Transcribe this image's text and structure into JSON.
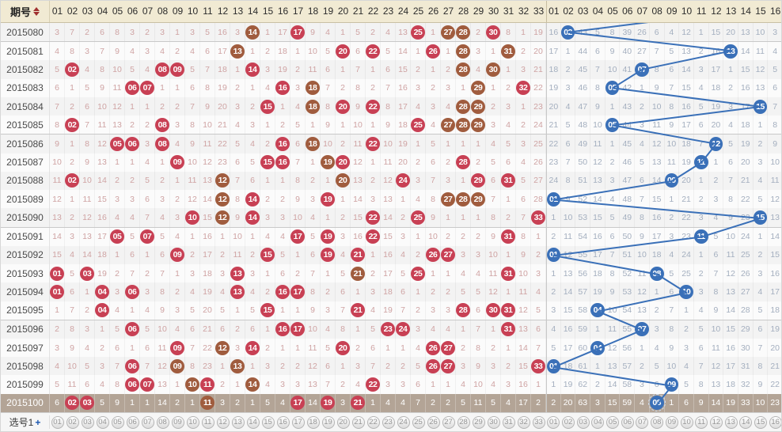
{
  "header": {
    "issue_label": "期号",
    "red_columns": [
      "01",
      "02",
      "03",
      "04",
      "05",
      "06",
      "07",
      "08",
      "09",
      "10",
      "11",
      "12",
      "13",
      "14",
      "15",
      "16",
      "17",
      "18",
      "19",
      "20",
      "21",
      "22",
      "23",
      "24",
      "25",
      "26",
      "27",
      "28",
      "29",
      "30",
      "31",
      "32",
      "33"
    ],
    "blue_columns": [
      "01",
      "02",
      "03",
      "04",
      "05",
      "06",
      "07",
      "08",
      "09",
      "10",
      "11",
      "12",
      "13",
      "14",
      "15",
      "16"
    ]
  },
  "colors": {
    "red_ball": "#c84054",
    "brown_ball": "#a05c3e",
    "blue_ball": "#3a70b8",
    "trend_line": "#3a70b8",
    "red_miss_text": "#cfa3a3",
    "blue_miss_text": "#a4afbf",
    "highlight_row_bg": "#b3a496",
    "header_bg": "#f1ead3"
  },
  "trend_line": {
    "enters_from_top_at_col": 12
  },
  "rows": [
    {
      "issue": "2015080",
      "red": [
        "3",
        "7",
        "2",
        "6",
        "8",
        "3",
        "2",
        "3",
        "1",
        "3",
        "5",
        "16",
        "3",
        "N",
        "1",
        "17",
        "R",
        "9",
        "4",
        "1",
        "5",
        "2",
        "4",
        "13",
        "R",
        "1",
        "N",
        "N",
        "2",
        "R",
        "8",
        "1",
        "19"
      ],
      "blue": [
        "16",
        "L",
        "43",
        "5",
        "8",
        "39",
        "26",
        "6",
        "4",
        "12",
        "1",
        "15",
        "20",
        "13",
        "10",
        "3"
      ],
      "highlight": false
    },
    {
      "issue": "2015081",
      "red": [
        "4",
        "8",
        "3",
        "7",
        "9",
        "4",
        "3",
        "4",
        "2",
        "4",
        "6",
        "17",
        "N",
        "1",
        "2",
        "18",
        "1",
        "10",
        "5",
        "R",
        "6",
        "R",
        "5",
        "14",
        "1",
        "R",
        "1",
        "N",
        "3",
        "1",
        "N",
        "2",
        "20"
      ],
      "blue": [
        "17",
        "1",
        "44",
        "6",
        "9",
        "40",
        "27",
        "7",
        "5",
        "13",
        "2",
        "16",
        "L",
        "14",
        "11",
        "4"
      ],
      "highlight": false
    },
    {
      "issue": "2015082",
      "red": [
        "5",
        "R",
        "4",
        "8",
        "10",
        "5",
        "4",
        "R",
        "R",
        "5",
        "7",
        "18",
        "1",
        "R",
        "3",
        "19",
        "2",
        "11",
        "6",
        "1",
        "7",
        "1",
        "6",
        "15",
        "2",
        "1",
        "2",
        "N",
        "4",
        "N",
        "1",
        "3",
        "21"
      ],
      "blue": [
        "18",
        "2",
        "45",
        "7",
        "10",
        "41",
        "L",
        "8",
        "6",
        "14",
        "3",
        "17",
        "1",
        "15",
        "12",
        "5"
      ],
      "highlight": false
    },
    {
      "issue": "2015083",
      "red": [
        "6",
        "1",
        "5",
        "9",
        "11",
        "R",
        "R",
        "1",
        "1",
        "6",
        "8",
        "19",
        "2",
        "1",
        "4",
        "R",
        "3",
        "N",
        "7",
        "2",
        "8",
        "2",
        "7",
        "16",
        "3",
        "2",
        "3",
        "1",
        "N",
        "1",
        "2",
        "R",
        "22"
      ],
      "blue": [
        "19",
        "3",
        "46",
        "8",
        "L",
        "42",
        "1",
        "9",
        "7",
        "15",
        "4",
        "18",
        "2",
        "16",
        "13",
        "6"
      ],
      "highlight": false
    },
    {
      "issue": "2015084",
      "red": [
        "7",
        "2",
        "6",
        "10",
        "12",
        "1",
        "1",
        "2",
        "2",
        "7",
        "9",
        "20",
        "3",
        "2",
        "R",
        "1",
        "4",
        "N",
        "8",
        "R",
        "9",
        "R",
        "8",
        "17",
        "4",
        "3",
        "4",
        "N",
        "N",
        "2",
        "3",
        "1",
        "23"
      ],
      "blue": [
        "20",
        "4",
        "47",
        "9",
        "1",
        "43",
        "2",
        "10",
        "8",
        "16",
        "5",
        "19",
        "3",
        "17",
        "L",
        "7"
      ],
      "highlight": false
    },
    {
      "issue": "2015085",
      "red": [
        "8",
        "R",
        "7",
        "11",
        "13",
        "2",
        "2",
        "R",
        "3",
        "8",
        "10",
        "21",
        "4",
        "3",
        "1",
        "2",
        "5",
        "1",
        "9",
        "1",
        "10",
        "1",
        "9",
        "18",
        "R",
        "4",
        "N",
        "N",
        "N",
        "3",
        "4",
        "2",
        "24"
      ],
      "blue": [
        "21",
        "5",
        "48",
        "10",
        "L",
        "44",
        "3",
        "11",
        "9",
        "17",
        "6",
        "20",
        "4",
        "18",
        "1",
        "8"
      ],
      "highlight": false
    },
    {
      "issue": "2015086",
      "red": [
        "9",
        "1",
        "8",
        "12",
        "R",
        "R",
        "3",
        "R",
        "4",
        "9",
        "11",
        "22",
        "5",
        "4",
        "2",
        "R",
        "6",
        "N",
        "10",
        "2",
        "11",
        "R",
        "10",
        "19",
        "1",
        "5",
        "1",
        "1",
        "1",
        "4",
        "5",
        "3",
        "25"
      ],
      "blue": [
        "22",
        "6",
        "49",
        "11",
        "1",
        "45",
        "4",
        "12",
        "10",
        "18",
        "7",
        "L",
        "5",
        "19",
        "2",
        "9"
      ],
      "highlight": false
    },
    {
      "issue": "2015087",
      "red": [
        "10",
        "2",
        "9",
        "13",
        "1",
        "1",
        "4",
        "1",
        "R",
        "10",
        "12",
        "23",
        "6",
        "5",
        "R",
        "R",
        "7",
        "1",
        "N",
        "R",
        "12",
        "1",
        "11",
        "20",
        "2",
        "6",
        "2",
        "R",
        "2",
        "5",
        "6",
        "4",
        "26"
      ],
      "blue": [
        "23",
        "7",
        "50",
        "12",
        "2",
        "46",
        "5",
        "13",
        "11",
        "19",
        "L",
        "1",
        "6",
        "20",
        "3",
        "10"
      ],
      "highlight": false
    },
    {
      "issue": "2015088",
      "red": [
        "11",
        "R",
        "10",
        "14",
        "2",
        "2",
        "5",
        "2",
        "1",
        "11",
        "13",
        "N",
        "7",
        "6",
        "1",
        "1",
        "8",
        "2",
        "1",
        "N",
        "13",
        "2",
        "12",
        "R",
        "3",
        "7",
        "3",
        "1",
        "R",
        "6",
        "R",
        "5",
        "27"
      ],
      "blue": [
        "24",
        "8",
        "51",
        "13",
        "3",
        "47",
        "6",
        "14",
        "L",
        "20",
        "1",
        "2",
        "7",
        "21",
        "4",
        "11"
      ],
      "highlight": false
    },
    {
      "issue": "2015089",
      "red": [
        "12",
        "1",
        "11",
        "15",
        "3",
        "3",
        "6",
        "3",
        "2",
        "12",
        "14",
        "N",
        "8",
        "R",
        "2",
        "2",
        "9",
        "3",
        "R",
        "1",
        "14",
        "3",
        "13",
        "1",
        "4",
        "8",
        "N",
        "N",
        "N",
        "7",
        "1",
        "6",
        "28"
      ],
      "blue": [
        "L",
        "9",
        "52",
        "14",
        "4",
        "48",
        "7",
        "15",
        "1",
        "21",
        "2",
        "3",
        "8",
        "22",
        "5",
        "12"
      ],
      "highlight": false
    },
    {
      "issue": "2015090",
      "red": [
        "13",
        "2",
        "12",
        "16",
        "4",
        "4",
        "7",
        "4",
        "3",
        "R",
        "15",
        "N",
        "9",
        "R",
        "3",
        "3",
        "10",
        "4",
        "1",
        "2",
        "15",
        "R",
        "14",
        "2",
        "R",
        "9",
        "1",
        "1",
        "1",
        "8",
        "2",
        "7",
        "R"
      ],
      "blue": [
        "1",
        "10",
        "53",
        "15",
        "5",
        "49",
        "8",
        "16",
        "2",
        "22",
        "3",
        "4",
        "9",
        "23",
        "L",
        "13"
      ],
      "highlight": false
    },
    {
      "issue": "2015091",
      "red": [
        "14",
        "3",
        "13",
        "17",
        "R",
        "5",
        "R",
        "5",
        "4",
        "1",
        "16",
        "1",
        "10",
        "1",
        "4",
        "4",
        "R",
        "5",
        "R",
        "3",
        "16",
        "R",
        "15",
        "3",
        "1",
        "10",
        "2",
        "2",
        "2",
        "9",
        "R",
        "8",
        "1"
      ],
      "blue": [
        "2",
        "11",
        "54",
        "16",
        "6",
        "50",
        "9",
        "17",
        "3",
        "23",
        "L",
        "5",
        "10",
        "24",
        "1",
        "14"
      ],
      "highlight": false
    },
    {
      "issue": "2015092",
      "red": [
        "15",
        "4",
        "14",
        "18",
        "1",
        "6",
        "1",
        "6",
        "R",
        "2",
        "17",
        "2",
        "11",
        "2",
        "R",
        "5",
        "1",
        "6",
        "R",
        "4",
        "R",
        "1",
        "16",
        "4",
        "2",
        "R",
        "R",
        "3",
        "3",
        "10",
        "1",
        "9",
        "2"
      ],
      "blue": [
        "L",
        "12",
        "55",
        "17",
        "7",
        "51",
        "10",
        "18",
        "4",
        "24",
        "1",
        "6",
        "11",
        "25",
        "2",
        "15"
      ],
      "highlight": false
    },
    {
      "issue": "2015093",
      "red": [
        "R",
        "5",
        "R",
        "19",
        "2",
        "7",
        "2",
        "7",
        "1",
        "3",
        "18",
        "3",
        "R",
        "3",
        "1",
        "6",
        "2",
        "7",
        "1",
        "5",
        "N",
        "2",
        "17",
        "5",
        "R",
        "1",
        "1",
        "4",
        "4",
        "11",
        "R",
        "10",
        "3"
      ],
      "blue": [
        "1",
        "13",
        "56",
        "18",
        "8",
        "52",
        "11",
        "L",
        "5",
        "25",
        "2",
        "7",
        "12",
        "26",
        "3",
        "16"
      ],
      "highlight": false
    },
    {
      "issue": "2015094",
      "red": [
        "R",
        "6",
        "1",
        "R",
        "3",
        "R",
        "3",
        "8",
        "2",
        "4",
        "19",
        "4",
        "R",
        "4",
        "2",
        "R",
        "R",
        "8",
        "2",
        "6",
        "1",
        "3",
        "18",
        "6",
        "1",
        "2",
        "2",
        "5",
        "5",
        "12",
        "1",
        "11",
        "4"
      ],
      "blue": [
        "2",
        "14",
        "57",
        "19",
        "9",
        "53",
        "12",
        "1",
        "6",
        "L",
        "3",
        "8",
        "13",
        "27",
        "4",
        "17"
      ],
      "highlight": false
    },
    {
      "issue": "2015095",
      "red": [
        "1",
        "7",
        "2",
        "R",
        "4",
        "1",
        "4",
        "9",
        "3",
        "5",
        "20",
        "5",
        "1",
        "5",
        "R",
        "1",
        "1",
        "9",
        "3",
        "7",
        "R",
        "4",
        "19",
        "7",
        "2",
        "3",
        "3",
        "R",
        "6",
        "R",
        "R",
        "12",
        "5"
      ],
      "blue": [
        "3",
        "15",
        "58",
        "L",
        "10",
        "54",
        "13",
        "2",
        "7",
        "1",
        "4",
        "9",
        "14",
        "28",
        "5",
        "18"
      ],
      "highlight": false
    },
    {
      "issue": "2015096",
      "red": [
        "2",
        "8",
        "3",
        "1",
        "5",
        "R",
        "5",
        "10",
        "4",
        "6",
        "21",
        "6",
        "2",
        "6",
        "1",
        "R",
        "R",
        "10",
        "4",
        "8",
        "1",
        "5",
        "R",
        "R",
        "3",
        "4",
        "4",
        "1",
        "7",
        "1",
        "R",
        "13",
        "6"
      ],
      "blue": [
        "4",
        "16",
        "59",
        "1",
        "11",
        "55",
        "L",
        "3",
        "8",
        "2",
        "5",
        "10",
        "15",
        "29",
        "6",
        "19"
      ],
      "highlight": false
    },
    {
      "issue": "2015097",
      "red": [
        "3",
        "9",
        "4",
        "2",
        "6",
        "1",
        "6",
        "11",
        "R",
        "7",
        "22",
        "N",
        "3",
        "R",
        "2",
        "1",
        "1",
        "11",
        "5",
        "R",
        "2",
        "6",
        "1",
        "1",
        "4",
        "R",
        "R",
        "2",
        "8",
        "2",
        "1",
        "14",
        "7"
      ],
      "blue": [
        "5",
        "17",
        "60",
        "L",
        "12",
        "56",
        "1",
        "4",
        "9",
        "3",
        "6",
        "11",
        "16",
        "30",
        "7",
        "20"
      ],
      "highlight": false
    },
    {
      "issue": "2015098",
      "red": [
        "4",
        "10",
        "5",
        "3",
        "7",
        "R",
        "7",
        "12",
        "N",
        "8",
        "23",
        "1",
        "N",
        "1",
        "3",
        "2",
        "2",
        "12",
        "6",
        "1",
        "3",
        "7",
        "2",
        "2",
        "5",
        "R",
        "R",
        "3",
        "9",
        "3",
        "2",
        "15",
        "R"
      ],
      "blue": [
        "L",
        "18",
        "61",
        "1",
        "13",
        "57",
        "2",
        "5",
        "10",
        "4",
        "7",
        "12",
        "17",
        "31",
        "8",
        "21"
      ],
      "highlight": false
    },
    {
      "issue": "2015099",
      "red": [
        "5",
        "11",
        "6",
        "4",
        "8",
        "R",
        "R",
        "13",
        "1",
        "N",
        "R",
        "2",
        "1",
        "N",
        "4",
        "3",
        "3",
        "13",
        "7",
        "2",
        "4",
        "R",
        "3",
        "3",
        "6",
        "1",
        "1",
        "4",
        "10",
        "4",
        "3",
        "16",
        "1"
      ],
      "blue": [
        "1",
        "19",
        "62",
        "2",
        "14",
        "58",
        "3",
        "6",
        "L",
        "5",
        "8",
        "13",
        "18",
        "32",
        "9",
        "22"
      ],
      "highlight": false
    },
    {
      "issue": "2015100",
      "red": [
        "6",
        "R",
        "R",
        "5",
        "9",
        "1",
        "1",
        "14",
        "2",
        "1",
        "N",
        "3",
        "2",
        "1",
        "5",
        "4",
        "R",
        "14",
        "R",
        "3",
        "R",
        "1",
        "4",
        "4",
        "7",
        "2",
        "2",
        "5",
        "11",
        "5",
        "4",
        "17",
        "2"
      ],
      "blue": [
        "2",
        "20",
        "63",
        "3",
        "15",
        "59",
        "4",
        "D",
        "1",
        "6",
        "9",
        "14",
        "19",
        "33",
        "10",
        "23"
      ],
      "highlight": true
    }
  ],
  "selection_row": {
    "label": "选号1",
    "plus": "+",
    "red_numbers": [
      "01",
      "02",
      "03",
      "04",
      "05",
      "06",
      "07",
      "08",
      "09",
      "10",
      "11",
      "12",
      "13",
      "14",
      "15",
      "16",
      "17",
      "18",
      "19",
      "20",
      "21",
      "22",
      "23",
      "24",
      "25",
      "26",
      "27",
      "28",
      "29",
      "30",
      "31",
      "32",
      "33"
    ],
    "blue_numbers": [
      "01",
      "02",
      "03",
      "04",
      "05",
      "06",
      "07",
      "08",
      "09",
      "10",
      "11",
      "12",
      "13",
      "14",
      "15",
      "16"
    ]
  }
}
